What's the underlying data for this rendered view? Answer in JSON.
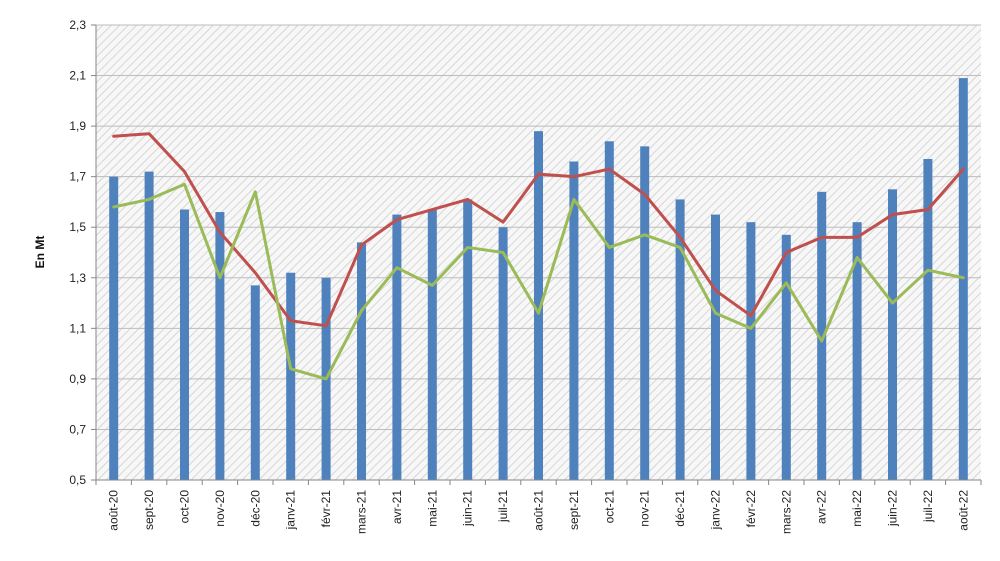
{
  "chart_data": {
    "type": "bar",
    "title": "",
    "xlabel": "",
    "ylabel": "En Mt",
    "ylim": [
      0.5,
      2.3
    ],
    "yticks": [
      "0,5",
      "0,7",
      "0,9",
      "1,1",
      "1,3",
      "1,5",
      "1,7",
      "1,9",
      "2,1",
      "2,3"
    ],
    "ytick_values": [
      0.5,
      0.7,
      0.9,
      1.1,
      1.3,
      1.5,
      1.7,
      1.9,
      2.1,
      2.3
    ],
    "grid": true,
    "categories": [
      "août-20",
      "sept-20",
      "oct-20",
      "nov-20",
      "déc-20",
      "janv-21",
      "févr-21",
      "mars-21",
      "avr-21",
      "mai-21",
      "juin-21",
      "juil-21",
      "août-21",
      "sept-21",
      "oct-21",
      "nov-21",
      "déc-21",
      "janv-22",
      "févr-22",
      "mars-22",
      "avr-22",
      "mai-22",
      "juin-22",
      "juil-22",
      "août-22"
    ],
    "series": [
      {
        "name": "bars",
        "kind": "bar",
        "color": "#4F81BD",
        "values": [
          1.7,
          1.72,
          1.57,
          1.56,
          1.27,
          1.32,
          1.3,
          1.44,
          1.55,
          1.57,
          1.61,
          1.5,
          1.88,
          1.76,
          1.84,
          1.82,
          1.61,
          1.55,
          1.52,
          1.47,
          1.64,
          1.52,
          1.65,
          1.77,
          2.09
        ]
      },
      {
        "name": "red line",
        "kind": "line",
        "color": "#C0504D",
        "values": [
          1.86,
          1.87,
          1.72,
          1.48,
          1.32,
          1.13,
          1.11,
          1.43,
          1.53,
          1.57,
          1.61,
          1.52,
          1.71,
          1.7,
          1.73,
          1.63,
          1.46,
          1.25,
          1.15,
          1.4,
          1.46,
          1.46,
          1.55,
          1.57,
          1.73
        ]
      },
      {
        "name": "green line",
        "kind": "line",
        "color": "#9BBB59",
        "values": [
          1.58,
          1.61,
          1.67,
          1.3,
          1.64,
          0.94,
          0.9,
          1.17,
          1.34,
          1.27,
          1.42,
          1.4,
          1.16,
          1.61,
          1.42,
          1.47,
          1.42,
          1.16,
          1.1,
          1.28,
          1.05,
          1.38,
          1.2,
          1.33,
          1.3
        ]
      }
    ]
  }
}
